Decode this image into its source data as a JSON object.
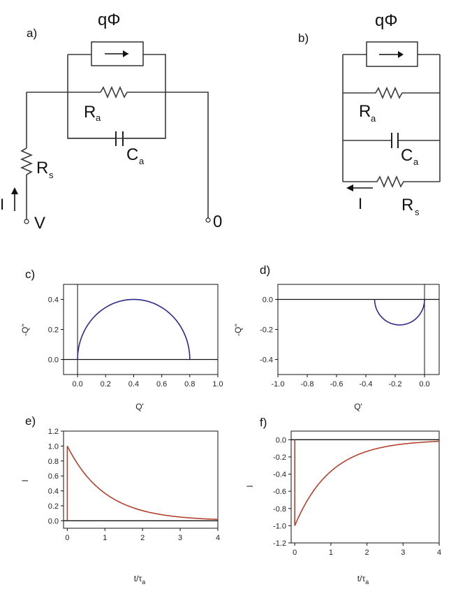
{
  "circuit_a": {
    "panel": "a)",
    "source_label": "qΦ",
    "ra": {
      "main": "R",
      "sub": "a"
    },
    "ca": {
      "main": "C",
      "sub": "a"
    },
    "rs": {
      "main": "R",
      "sub": "s"
    },
    "current": "I",
    "terminal_v": "V",
    "terminal_0": "0"
  },
  "circuit_b": {
    "panel": "b)",
    "source_label": "qΦ",
    "ra": {
      "main": "R",
      "sub": "a"
    },
    "ca": {
      "main": "C",
      "sub": "a"
    },
    "rs": {
      "main": "R",
      "sub": "s"
    },
    "current": "I"
  },
  "colors": {
    "nyquist_curve": "#2e2a8c",
    "transient_curve": "#b5402e",
    "wire": "#3a3a3a"
  },
  "chart_data": [
    {
      "panel": "c)",
      "type": "line",
      "xlabel": "Q'",
      "ylabel": "-Q''",
      "xlim": [
        -0.1,
        1.0
      ],
      "ylim": [
        -0.1,
        0.5
      ],
      "xticks": [
        "0.0",
        "0.2",
        "0.4",
        "0.6",
        "0.8",
        "1.0"
      ],
      "xtick_values": [
        0,
        0.2,
        0.4,
        0.6,
        0.8,
        1.0
      ],
      "yticks": [
        "0.0",
        "0.2",
        "0.4"
      ],
      "ytick_values": [
        0,
        0.2,
        0.4
      ],
      "shape": "semicircle",
      "series": [
        {
          "center": 0.4,
          "radius": 0.4,
          "sign": 1
        }
      ],
      "zero_lines": {
        "x": true,
        "y": true
      }
    },
    {
      "panel": "d)",
      "type": "line",
      "xlabel": "Q'",
      "ylabel": "-Q''",
      "xlim": [
        -1.0,
        0.1
      ],
      "ylim": [
        -0.5,
        0.1
      ],
      "xticks": [
        "-1.0",
        "-0.8",
        "-0.6",
        "-0.4",
        "-0.2",
        "0.0"
      ],
      "xtick_values": [
        -1.0,
        -0.8,
        -0.6,
        -0.4,
        -0.2,
        0.0
      ],
      "yticks": [
        "0.0",
        "-0.2",
        "-0.4"
      ],
      "ytick_values": [
        0,
        -0.2,
        -0.4
      ],
      "shape": "semicircle",
      "series": [
        {
          "center": -0.17,
          "radius": 0.17,
          "sign": -1
        }
      ],
      "zero_lines": {
        "x": true,
        "y": true
      }
    },
    {
      "panel": "e)",
      "type": "line",
      "xlabel": "t/τ",
      "xlabel_sub": "a",
      "ylabel": "I",
      "xlim": [
        -0.1,
        4.0
      ],
      "ylim": [
        -0.1,
        1.2
      ],
      "xticks": [
        "0",
        "1",
        "2",
        "3",
        "4"
      ],
      "xtick_values": [
        0,
        1,
        2,
        3,
        4
      ],
      "yticks": [
        "0.0",
        "0.2",
        "0.4",
        "0.6",
        "0.8",
        "1.0",
        "1.2"
      ],
      "ytick_values": [
        0,
        0.2,
        0.4,
        0.6,
        0.8,
        1.0,
        1.2
      ],
      "shape": "decay",
      "series": [
        {
          "amplitude": 1.0,
          "tau": 1.0,
          "step_at": 0.0
        }
      ],
      "zero_lines": {
        "x": false,
        "y": true
      }
    },
    {
      "panel": "f)",
      "type": "line",
      "xlabel": "t/τ",
      "xlabel_sub": "a",
      "ylabel": "I",
      "xlim": [
        -0.1,
        4.0
      ],
      "ylim": [
        -1.2,
        0.1
      ],
      "xticks": [
        "0",
        "1",
        "2",
        "3",
        "4"
      ],
      "xtick_values": [
        0,
        1,
        2,
        3,
        4
      ],
      "yticks": [
        "0.0",
        "-0.2",
        "-0.4",
        "-0.6",
        "-0.8",
        "-1.0",
        "-1.2"
      ],
      "ytick_values": [
        0,
        -0.2,
        -0.4,
        -0.6,
        -0.8,
        -1.0,
        -1.2
      ],
      "shape": "decay",
      "series": [
        {
          "amplitude": -1.0,
          "tau": 1.0,
          "step_at": 0.0
        }
      ],
      "zero_lines": {
        "x": false,
        "y": true
      }
    }
  ]
}
